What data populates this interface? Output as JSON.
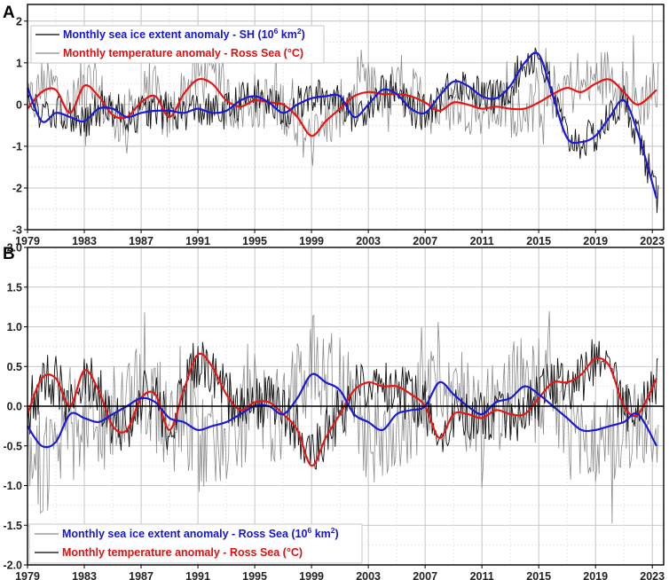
{
  "chart_data": [
    {
      "panel_label": "A",
      "type": "line",
      "xlim": [
        1979,
        2023.8
      ],
      "ylim": [
        -3,
        2.4
      ],
      "x_ticks": [
        "1979",
        "1983",
        "1987",
        "1991",
        "1995",
        "1999",
        "2003",
        "2007",
        "2011",
        "2015",
        "2019",
        "2023"
      ],
      "y_ticks": [
        "2",
        "1",
        "0",
        "-1",
        "-2",
        "-3"
      ],
      "legend": [
        {
          "text": "Monthly sea ice extent anomaly - SH (",
          "sup_base": "10",
          "sup": "6",
          "unit": " km",
          "sup2": "2",
          "close": ")",
          "color": "#1515d6",
          "swatch": "#000000"
        },
        {
          "text": "Monthly temperature anomaly - Ross Sea (°C)",
          "color": "#e01010",
          "swatch": "#888888"
        }
      ],
      "series": [
        {
          "name": "Monthly sea ice extent anomaly - SH (smoothed)",
          "color": "#1a1ad8",
          "x": [
            1979,
            1980,
            1981,
            1982,
            1983,
            1984,
            1985,
            1986,
            1987,
            1988,
            1989,
            1990,
            1991,
            1992,
            1993,
            1994,
            1995,
            1996,
            1997,
            1998,
            1999,
            2000,
            2001,
            2002,
            2003,
            2004,
            2005,
            2006,
            2007,
            2008,
            2009,
            2010,
            2011,
            2012,
            2013,
            2014,
            2015,
            2016,
            2017,
            2018,
            2019,
            2020,
            2021,
            2022,
            2023.3
          ],
          "values": [
            0.4,
            -0.4,
            -0.2,
            -0.3,
            -0.4,
            -0.1,
            -0.1,
            -0.3,
            -0.2,
            -0.15,
            -0.15,
            -0.2,
            -0.1,
            -0.2,
            -0.15,
            0.1,
            0.2,
            0.05,
            -0.2,
            0.0,
            0.15,
            0.2,
            0.2,
            -0.3,
            0.0,
            0.35,
            0.25,
            -0.1,
            -0.2,
            0.2,
            0.55,
            0.45,
            0.2,
            0.15,
            0.45,
            1.0,
            1.2,
            0.2,
            -0.8,
            -0.9,
            -0.75,
            -0.3,
            0.1,
            -0.7,
            -2.25
          ]
        },
        {
          "name": "Monthly temperature anomaly - Ross Sea (smoothed)",
          "color": "#e81515",
          "x": [
            1979,
            1980,
            1981,
            1982,
            1983,
            1984,
            1985,
            1986,
            1987,
            1988,
            1989,
            1990,
            1991,
            1992,
            1993,
            1994,
            1995,
            1996,
            1997,
            1998,
            1999,
            2000,
            2001,
            2002,
            2003,
            2004,
            2005,
            2006,
            2007,
            2008,
            2009,
            2010,
            2011,
            2012,
            2013,
            2014,
            2015,
            2016,
            2017,
            2018,
            2019,
            2020,
            2021,
            2022,
            2023.3
          ],
          "values": [
            -0.1,
            0.3,
            0.35,
            -0.2,
            0.45,
            0.2,
            -0.25,
            -0.3,
            0.05,
            0.2,
            -0.3,
            0.25,
            0.6,
            0.5,
            0.1,
            -0.05,
            0.1,
            0.05,
            0.0,
            -0.3,
            -0.75,
            -0.4,
            -0.1,
            0.2,
            0.3,
            0.25,
            0.25,
            0.2,
            0.05,
            -0.15,
            0.05,
            0.0,
            -0.1,
            -0.05,
            -0.1,
            -0.1,
            0.05,
            0.25,
            0.4,
            0.3,
            0.5,
            0.6,
            0.3,
            0.0,
            0.35
          ]
        }
      ]
    },
    {
      "panel_label": "B",
      "type": "line",
      "xlim": [
        1979,
        2023.8
      ],
      "ylim": [
        -2.0,
        2.0
      ],
      "x_ticks": [
        "1979",
        "1983",
        "1987",
        "1991",
        "1995",
        "1999",
        "2003",
        "2007",
        "2011",
        "2015",
        "2019",
        "2023"
      ],
      "y_ticks": [
        "2.0",
        "1.5",
        "1.0",
        "0.5",
        "0.0",
        "-0.5",
        "-1.0",
        "-1.5",
        "-2.0"
      ],
      "legend": [
        {
          "text": "Monthly sea ice extent anomaly - Ross Sea (",
          "sup_base": "10",
          "sup": "6",
          "unit": " km",
          "sup2": "2",
          "close": ")",
          "color": "#1515d6",
          "swatch": "#888888"
        },
        {
          "text": "Monthly temperature anomaly - Ross Sea (°C)",
          "color": "#e01010",
          "swatch": "#000000"
        }
      ],
      "series": [
        {
          "name": "Monthly sea ice extent anomaly - Ross Sea (smoothed)",
          "color": "#1a1ad8",
          "x": [
            1979,
            1980,
            1981,
            1982,
            1983,
            1984,
            1985,
            1986,
            1987,
            1988,
            1989,
            1990,
            1991,
            1992,
            1993,
            1994,
            1995,
            1996,
            1997,
            1998,
            1999,
            2000,
            2001,
            2002,
            2003,
            2004,
            2005,
            2006,
            2007,
            2008,
            2009,
            2010,
            2011,
            2012,
            2013,
            2014,
            2015,
            2016,
            2017,
            2018,
            2019,
            2020,
            2021,
            2022,
            2023.3
          ],
          "values": [
            -0.25,
            -0.5,
            -0.45,
            -0.1,
            -0.15,
            -0.2,
            -0.1,
            0.0,
            0.1,
            0.05,
            -0.15,
            -0.2,
            -0.3,
            -0.25,
            -0.2,
            -0.1,
            0.0,
            0.0,
            -0.1,
            0.1,
            0.4,
            0.3,
            0.2,
            -0.1,
            -0.2,
            -0.3,
            -0.1,
            -0.05,
            0.0,
            0.3,
            0.15,
            0.0,
            -0.1,
            0.05,
            0.1,
            0.25,
            0.15,
            0.0,
            -0.15,
            -0.3,
            -0.3,
            -0.25,
            -0.2,
            -0.1,
            -0.5
          ]
        },
        {
          "name": "Monthly temperature anomaly - Ross Sea (smoothed)",
          "color": "#e81515",
          "x": [
            1979,
            1980,
            1981,
            1982,
            1983,
            1984,
            1985,
            1986,
            1987,
            1988,
            1989,
            1990,
            1991,
            1992,
            1993,
            1994,
            1995,
            1996,
            1997,
            1998,
            1999,
            2000,
            2001,
            2002,
            2003,
            2004,
            2005,
            2006,
            2007,
            2008,
            2009,
            2010,
            2011,
            2012,
            2013,
            2014,
            2015,
            2016,
            2017,
            2018,
            2019,
            2020,
            2021,
            2022,
            2023.3
          ],
          "values": [
            -0.1,
            0.35,
            0.35,
            0.0,
            0.45,
            0.2,
            -0.25,
            -0.3,
            0.1,
            0.15,
            -0.3,
            0.2,
            0.65,
            0.5,
            0.15,
            -0.05,
            0.05,
            0.05,
            -0.1,
            -0.3,
            -0.75,
            -0.4,
            -0.1,
            0.2,
            0.3,
            0.25,
            0.25,
            0.15,
            0.0,
            -0.4,
            -0.1,
            -0.1,
            -0.15,
            -0.05,
            -0.1,
            -0.1,
            0.1,
            0.3,
            0.3,
            0.4,
            0.6,
            0.5,
            0.0,
            -0.1,
            0.35
          ]
        }
      ]
    }
  ]
}
